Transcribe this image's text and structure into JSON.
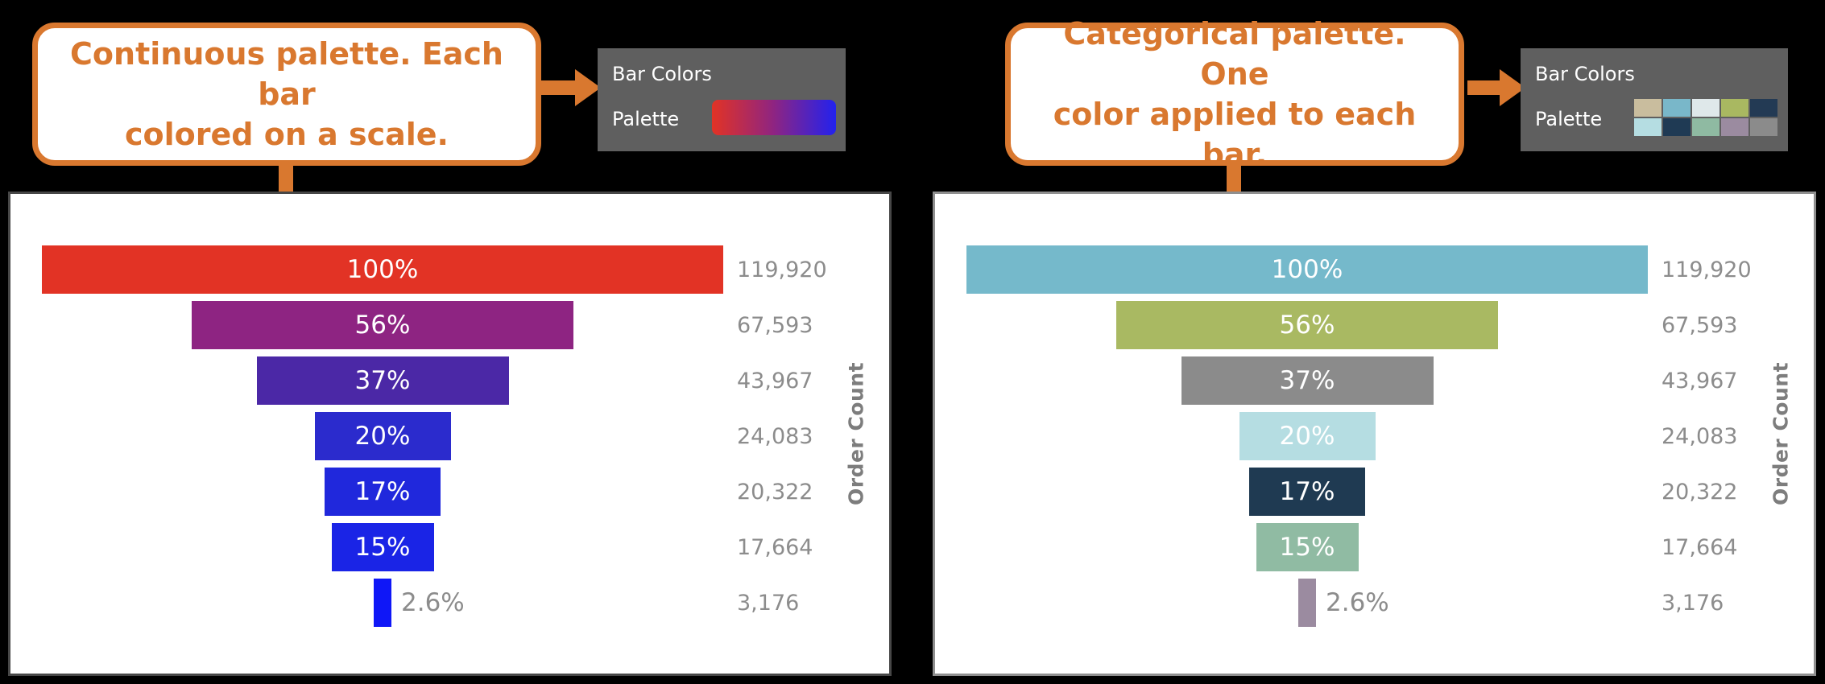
{
  "page": {
    "background": "#000000",
    "accent_orange": "#d9782f"
  },
  "annotations": {
    "left": {
      "line1": "Continuous palette. Each bar",
      "line2": "colored on a scale."
    },
    "right": {
      "line1": "Categorical palette. One",
      "line2": "color applied to each bar."
    }
  },
  "panels": {
    "left": {
      "title": "Bar Colors",
      "palette_label": "Palette",
      "swatch": {
        "type": "gradient",
        "colors": [
          "#e23325",
          "#8e2482",
          "#2222ee"
        ]
      }
    },
    "right": {
      "title": "Bar Colors",
      "palette_label": "Palette",
      "swatch": {
        "type": "categorical",
        "colors": [
          "#c9bd9e",
          "#79b7c9",
          "#dfe8ea",
          "#a9b861",
          "#233a54",
          "#b5dde2",
          "#1f3a54",
          "#8fbaa2",
          "#9b8ba0",
          "#8b8b8b"
        ]
      }
    }
  },
  "chart_data": [
    {
      "type": "bar",
      "variant": "centered-funnel",
      "palette": "continuous red-to-blue",
      "categories": [
        "100%",
        "56%",
        "37%",
        "20%",
        "17%",
        "15%",
        "2.6%"
      ],
      "percent_of_max": [
        100,
        56,
        37,
        20,
        17,
        15,
        2.6
      ],
      "values": [
        119920,
        67593,
        43967,
        24083,
        20322,
        17664,
        3176
      ],
      "value_labels": [
        "119,920",
        "67,593",
        "43,967",
        "24,083",
        "20,322",
        "17,664",
        "3,176"
      ],
      "bar_colors": [
        "#e23325",
        "#8e2482",
        "#4b28a6",
        "#2b2bcd",
        "#2028dc",
        "#1a24e6",
        "#0f17f7"
      ],
      "bar_label_colors": [
        "#ffffff",
        "#ffffff",
        "#ffffff",
        "#ffffff",
        "#ffffff",
        "#ffffff",
        "#8c8c8c"
      ],
      "outside_label_index": 6,
      "value_label_color": "#8c8c8c",
      "ylabel": "Order Count",
      "ylabel_color": "#7d7d7d",
      "xlim": [
        0,
        100
      ],
      "grid": false,
      "legend": "none"
    },
    {
      "type": "bar",
      "variant": "centered-funnel",
      "palette": "categorical",
      "categories": [
        "100%",
        "56%",
        "37%",
        "20%",
        "17%",
        "15%",
        "2.6%"
      ],
      "percent_of_max": [
        100,
        56,
        37,
        20,
        17,
        15,
        2.6
      ],
      "values": [
        119920,
        67593,
        43967,
        24083,
        20322,
        17664,
        3176
      ],
      "value_labels": [
        "119,920",
        "67,593",
        "43,967",
        "24,083",
        "20,322",
        "17,664",
        "3,176"
      ],
      "bar_colors": [
        "#75b9cb",
        "#a9b962",
        "#8b8b8b",
        "#b5dde2",
        "#1f3a52",
        "#90bba3",
        "#9b8ba0"
      ],
      "bar_label_colors": [
        "#ffffff",
        "#ffffff",
        "#ffffff",
        "#ffffff",
        "#ffffff",
        "#ffffff",
        "#8c8c8c"
      ],
      "outside_label_index": 6,
      "value_label_color": "#8c8c8c",
      "ylabel": "Order Count",
      "ylabel_color": "#7d7d7d",
      "xlim": [
        0,
        100
      ],
      "grid": false,
      "legend": "none"
    }
  ]
}
